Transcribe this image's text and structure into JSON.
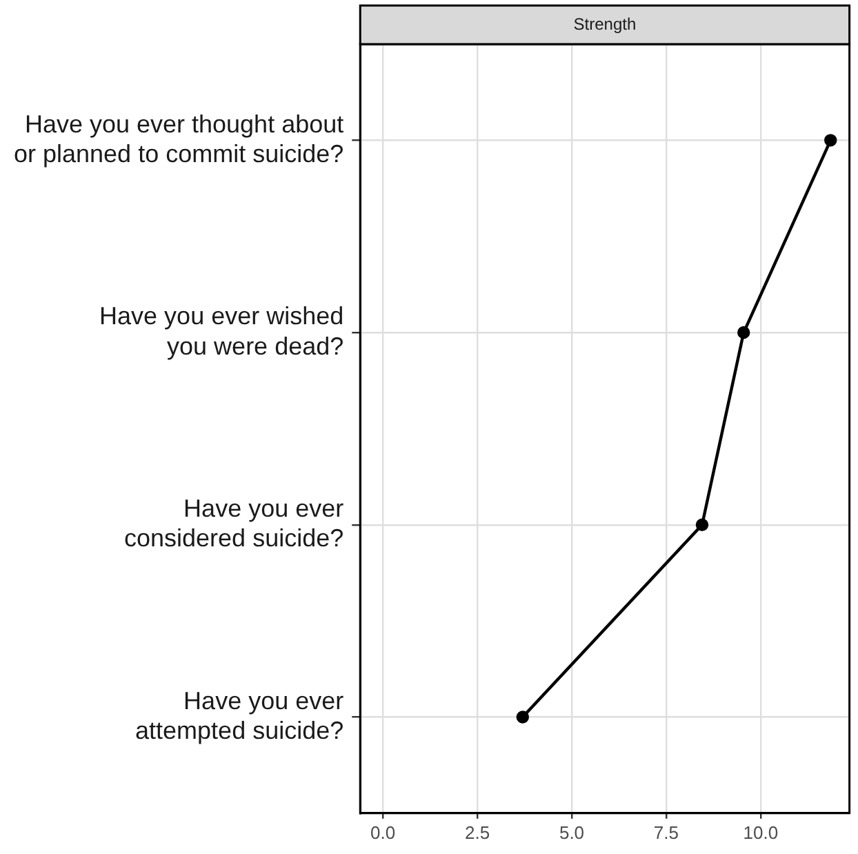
{
  "chart_data": {
    "type": "line",
    "orientation": "horizontal",
    "title": "Strength",
    "categories": [
      "Have you ever thought about\nor planned to commit suicide?",
      "Have you ever wished\nyou were dead?",
      "Have you ever\nconsidered suicide?",
      "Have you ever\nattempted suicide?"
    ],
    "series": [
      {
        "color": "#000000",
        "values": [
          11.85,
          9.55,
          8.45,
          3.7
        ]
      }
    ],
    "xlim": [
      -0.6,
      12.35
    ],
    "xticks": [
      {
        "value": 0,
        "label": "0.0"
      },
      {
        "value": 2.5,
        "label": "2.5"
      },
      {
        "value": 5,
        "label": "5.0"
      },
      {
        "value": 7.5,
        "label": "7.5"
      },
      {
        "value": 10,
        "label": "10.0"
      }
    ],
    "grid": true,
    "marker": "circle",
    "line_style": "solid"
  }
}
